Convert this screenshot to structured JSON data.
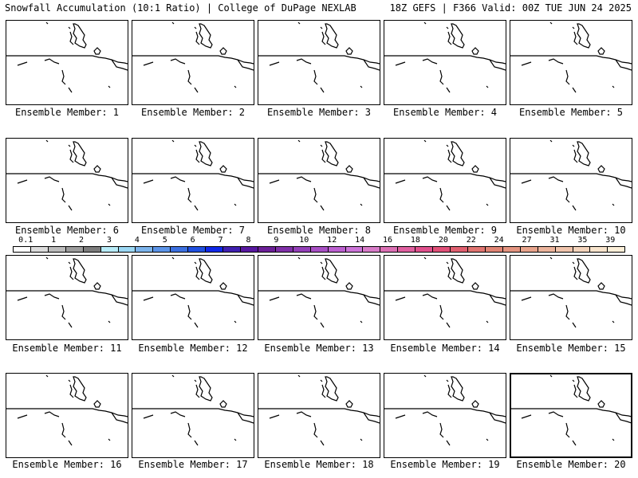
{
  "header": {
    "title_left": "Snowfall Accumulation (10:1 Ratio) | College of DuPage NEXLAB",
    "title_right": "18Z GEFS | F366 Valid: 00Z TUE JUN 24 2025"
  },
  "legend": {
    "colors": [
      "#ffffff",
      "#dcdcdc",
      "#bcbcbc",
      "#9c9c9c",
      "#7c7c7c",
      "#b8ecf8",
      "#9cd8f4",
      "#7cb4ec",
      "#5c94e8",
      "#3c70e0",
      "#2050e0",
      "#1028e8",
      "#4020b0",
      "#5818a0",
      "#6c2098",
      "#8030a8",
      "#9440b8",
      "#a850c4",
      "#bc60d0",
      "#cc74d8",
      "#d87cc8",
      "#dc70b4",
      "#e060a0",
      "#e0508c",
      "#e05078",
      "#e06070",
      "#e07470",
      "#e08474",
      "#e49480",
      "#e8a48c",
      "#ecb49c",
      "#f0c4ac",
      "#f4d4bc",
      "#f8e4cc",
      "#fcefd8"
    ],
    "labels": [
      "0.1",
      "1",
      "2",
      "3",
      "4",
      "5",
      "6",
      "7",
      "8",
      "9",
      "10",
      "12",
      "14",
      "16",
      "18",
      "20",
      "22",
      "24",
      "27",
      "31",
      "35",
      "39"
    ]
  },
  "members": [
    {
      "label": "Ensemble Member: 1"
    },
    {
      "label": "Ensemble Member: 2"
    },
    {
      "label": "Ensemble Member: 3"
    },
    {
      "label": "Ensemble Member: 4"
    },
    {
      "label": "Ensemble Member: 5"
    },
    {
      "label": "Ensemble Member: 6"
    },
    {
      "label": "Ensemble Member: 7"
    },
    {
      "label": "Ensemble Member: 8"
    },
    {
      "label": "Ensemble Member: 9"
    },
    {
      "label": "Ensemble Member: 10"
    },
    {
      "label": "Ensemble Member: 11"
    },
    {
      "label": "Ensemble Member: 12"
    },
    {
      "label": "Ensemble Member: 13"
    },
    {
      "label": "Ensemble Member: 14"
    },
    {
      "label": "Ensemble Member: 15"
    },
    {
      "label": "Ensemble Member: 16"
    },
    {
      "label": "Ensemble Member: 17"
    },
    {
      "label": "Ensemble Member: 18"
    },
    {
      "label": "Ensemble Member: 19"
    },
    {
      "label": "Ensemble Member: 20"
    }
  ]
}
